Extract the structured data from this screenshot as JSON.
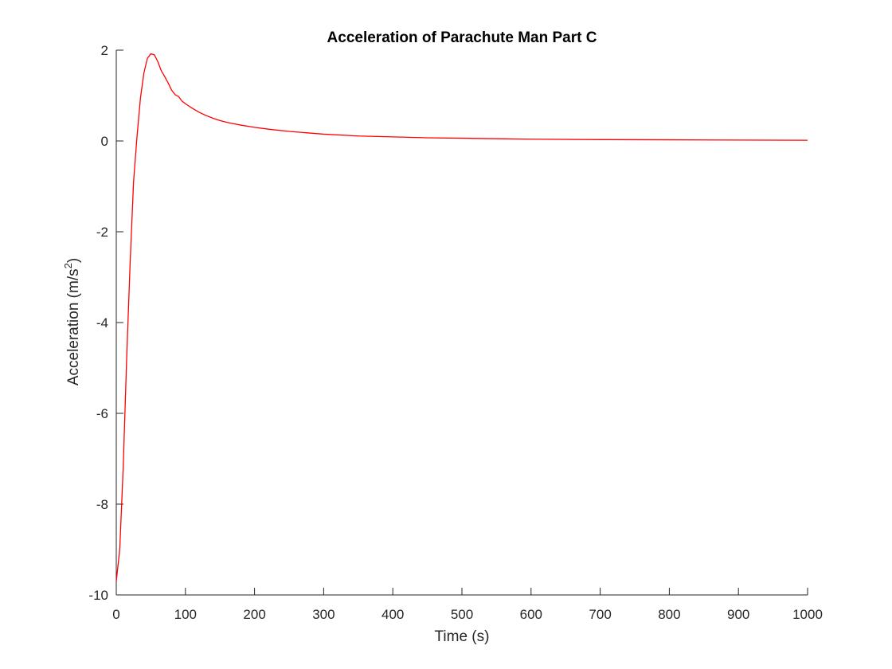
{
  "chart_data": {
    "type": "line",
    "title": "Acceleration of Parachute Man Part C",
    "xlabel": "Time (s)",
    "ylabel_main": "Acceleration (m/s",
    "ylabel_sup": "2",
    "ylabel_close": ")",
    "xlim": [
      0,
      1000
    ],
    "ylim": [
      -10,
      2
    ],
    "xticks": [
      0,
      100,
      200,
      300,
      400,
      500,
      600,
      700,
      800,
      900,
      1000
    ],
    "yticks": [
      -10,
      -8,
      -6,
      -4,
      -2,
      0,
      2
    ],
    "grid": false,
    "box": false,
    "series": [
      {
        "color": "#ff0000",
        "x": [
          0,
          5,
          10,
          15,
          20,
          25,
          30,
          35,
          40,
          45,
          50,
          55,
          60,
          65,
          70,
          75,
          80,
          85,
          90,
          95,
          100,
          110,
          120,
          130,
          140,
          150,
          160,
          170,
          180,
          200,
          220,
          250,
          300,
          350,
          400,
          450,
          500,
          600,
          700,
          800,
          900,
          1000
        ],
        "y": [
          -9.7,
          -9.0,
          -7.2,
          -4.8,
          -2.7,
          -0.9,
          0.1,
          0.95,
          1.5,
          1.82,
          1.92,
          1.9,
          1.75,
          1.55,
          1.42,
          1.28,
          1.12,
          1.02,
          0.98,
          0.88,
          0.82,
          0.72,
          0.63,
          0.56,
          0.5,
          0.45,
          0.41,
          0.38,
          0.35,
          0.3,
          0.26,
          0.21,
          0.15,
          0.11,
          0.09,
          0.07,
          0.06,
          0.04,
          0.03,
          0.025,
          0.02,
          0.015
        ]
      }
    ]
  }
}
